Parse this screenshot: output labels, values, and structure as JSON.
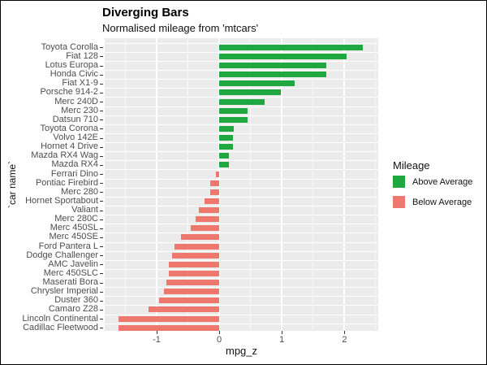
{
  "figure": {
    "title": "Diverging Bars",
    "subtitle": "Normalised mileage from 'mtcars'",
    "x_axis_label": "mpg_z",
    "y_axis_label": "`car name`",
    "x_tick_labels": [
      "-1",
      "0",
      "1",
      "2"
    ],
    "legend": {
      "title": "Mileage",
      "items": [
        {
          "label": "Above Average",
          "swatch": "#1ea83f",
          "class": "above"
        },
        {
          "label": "Below Average",
          "swatch": "#ee786e",
          "class": "below"
        }
      ]
    },
    "colors": {
      "panel_background": "#ebebeb",
      "gridline": "#ffffff",
      "above_bar": "#1ea83f",
      "below_bar": "#ee786e",
      "axis_text": "#4d4d4d",
      "tick_mark": "#333333",
      "text": "#000000",
      "frame_border": "#000000",
      "page_background": "#ffffff"
    }
  },
  "chart_data": {
    "type": "bar",
    "orientation": "horizontal",
    "title": "Diverging Bars",
    "subtitle": "Normalised mileage from 'mtcars'",
    "xlabel": "mpg_z",
    "ylabel": "`car name`",
    "xlim": [
      -1.83,
      2.54
    ],
    "x_major_ticks": [
      -1,
      0,
      1,
      2
    ],
    "x_minor_ticks": [
      -1.5,
      -0.5,
      0.5,
      1.5,
      2.5
    ],
    "grid": true,
    "legend_position": "right",
    "legend_title": "Mileage",
    "classes_legend": {
      "above": "Above Average",
      "below": "Below Average"
    },
    "categories": [
      "Toyota Corolla",
      "Fiat 128",
      "Lotus Europa",
      "Honda Civic",
      "Fiat X1-9",
      "Porsche 914-2",
      "Merc 240D",
      "Merc 230",
      "Datsun 710",
      "Toyota Corona",
      "Volvo 142E",
      "Hornet 4 Drive",
      "Mazda RX4 Wag",
      "Mazda RX4",
      "Ferrari Dino",
      "Pontiac Firebird",
      "Merc 280",
      "Hornet Sportabout",
      "Valiant",
      "Merc 280C",
      "Merc 450SL",
      "Merc 450SE",
      "Ford Pantera L",
      "Dodge Challenger",
      "AMC Javelin",
      "Merc 450SLC",
      "Maserati Bora",
      "Chrysler Imperial",
      "Duster 360",
      "Camaro Z28",
      "Lincoln Continental",
      "Cadillac Fleetwood"
    ],
    "values": [
      2.29,
      2.04,
      1.71,
      1.71,
      1.2,
      0.98,
      0.72,
      0.45,
      0.45,
      0.23,
      0.22,
      0.22,
      0.15,
      0.15,
      -0.06,
      -0.15,
      -0.15,
      -0.23,
      -0.33,
      -0.38,
      -0.46,
      -0.61,
      -0.71,
      -0.76,
      -0.81,
      -0.81,
      -0.84,
      -0.89,
      -0.96,
      -1.13,
      -1.61,
      -1.61
    ],
    "classes": [
      "above",
      "above",
      "above",
      "above",
      "above",
      "above",
      "above",
      "above",
      "above",
      "above",
      "above",
      "above",
      "above",
      "above",
      "below",
      "below",
      "below",
      "below",
      "below",
      "below",
      "below",
      "below",
      "below",
      "below",
      "below",
      "below",
      "below",
      "below",
      "below",
      "below",
      "below",
      "below"
    ]
  }
}
